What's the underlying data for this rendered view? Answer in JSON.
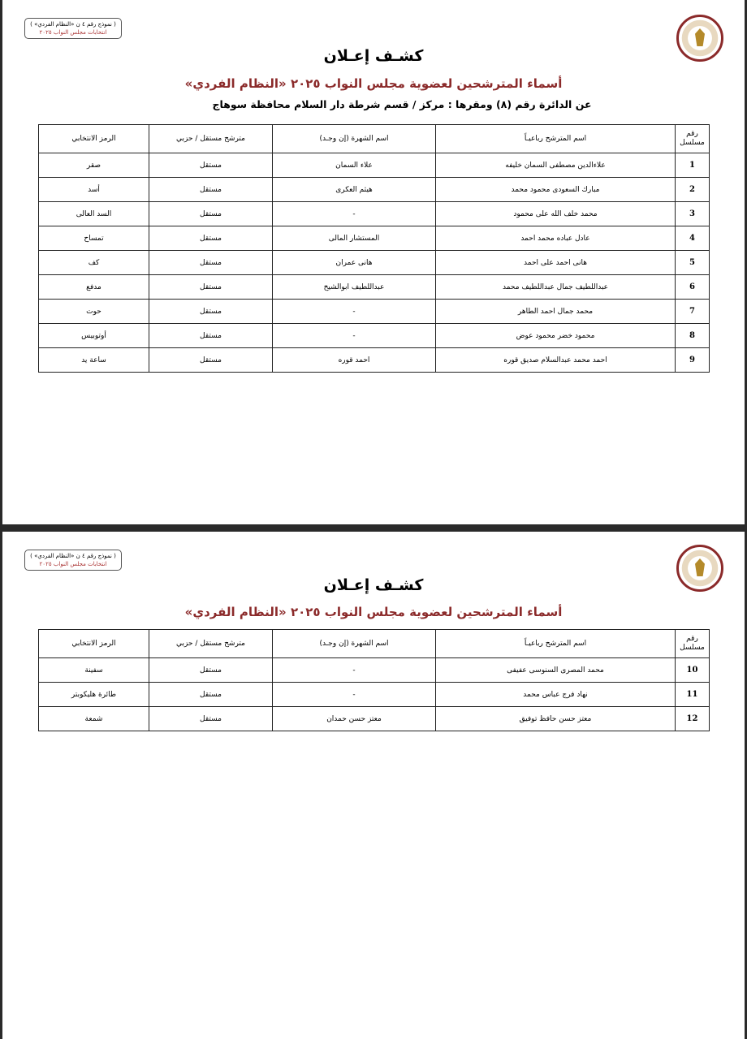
{
  "form_label": {
    "line1": "( نموذج رقم ٤ ن «النظام الفردي» )",
    "line2": "انتخابات مجلس النواب ٢٠٢٥"
  },
  "title": "كشـف إعـلان",
  "subtitle": "أسماء المترشحين لعضوية مجلس النواب ٢٠٢٥ «النظام الفردي»",
  "district": "عن الدائرة رقم (٨) ومقرها : مركز / قسم شرطة دار السلام محافظة سوهاج",
  "columns": [
    "رقم مسلسل",
    "اسم المترشح رباعيـاً",
    "اسم الشهرة (إن وجـد)",
    "مترشح مستقل / حزبي",
    "الرمز الانتخابي"
  ],
  "page1_rows": [
    {
      "no": "1",
      "name": "علاءالدين مصطفى السمان خليفه",
      "alias": "علاء السمان",
      "type": "مستقل",
      "symbol": "صقر"
    },
    {
      "no": "2",
      "name": "مبارك السعودى محمود محمد",
      "alias": "هيثم العكرى",
      "type": "مستقل",
      "symbol": "أسد"
    },
    {
      "no": "3",
      "name": "محمد خلف الله على محمود",
      "alias": "-",
      "type": "مستقل",
      "symbol": "السد العالى"
    },
    {
      "no": "4",
      "name": "عادل عباده محمد احمد",
      "alias": "المستشار المالى",
      "type": "مستقل",
      "symbol": "تمساح"
    },
    {
      "no": "5",
      "name": "هانى احمد على احمد",
      "alias": "هانى عمران",
      "type": "مستقل",
      "symbol": "كف"
    },
    {
      "no": "6",
      "name": "عبداللطيف جمال عبداللطيف محمد",
      "alias": "عبداللطيف ابوالشيخ",
      "type": "مستقل",
      "symbol": "مدفع"
    },
    {
      "no": "7",
      "name": "محمد جمال احمد الطاهر",
      "alias": "-",
      "type": "مستقل",
      "symbol": "حوت"
    },
    {
      "no": "8",
      "name": "محمود خضر محمود عوض",
      "alias": "-",
      "type": "مستقل",
      "symbol": "أوتوبيس"
    },
    {
      "no": "9",
      "name": "احمد محمد عبدالسلام صديق قوره",
      "alias": "احمد قوره",
      "type": "مستقل",
      "symbol": "ساعة يد"
    }
  ],
  "page2_rows": [
    {
      "no": "10",
      "name": "محمد المصرى السنوسى عفيفى",
      "alias": "-",
      "type": "مستقل",
      "symbol": "سفينة"
    },
    {
      "no": "11",
      "name": "نهاد فرج عباس محمد",
      "alias": "-",
      "type": "مستقل",
      "symbol": "طائرة هليكوبتر"
    },
    {
      "no": "12",
      "name": "معتز حسن حافظ توفيق",
      "alias": "معتز حسن حمدان",
      "type": "مستقل",
      "symbol": "شمعة"
    }
  ],
  "colors": {
    "accent": "#8b2a2a"
  }
}
